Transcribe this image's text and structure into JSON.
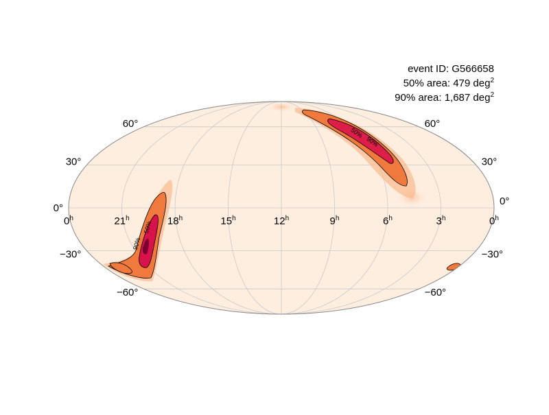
{
  "annotation": {
    "event_prefix": "event ID: ",
    "event_id": "G566658",
    "area50_prefix": "50% area: ",
    "area50_value": "479",
    "area90_prefix": "90% area: ",
    "area90_value": "1,687",
    "unit": "deg",
    "unit_exp": "2"
  },
  "projection": "mollweide",
  "ra_labels": [
    {
      "ra": 24,
      "text": "0",
      "sup": "h"
    },
    {
      "ra": 21,
      "text": "21",
      "sup": "h"
    },
    {
      "ra": 18,
      "text": "18",
      "sup": "h"
    },
    {
      "ra": 15,
      "text": "15",
      "sup": "h"
    },
    {
      "ra": 12,
      "text": "12",
      "sup": "h"
    },
    {
      "ra": 9,
      "text": "9",
      "sup": "h"
    },
    {
      "ra": 6,
      "text": "6",
      "sup": "h"
    },
    {
      "ra": 3,
      "text": "3",
      "sup": "h"
    },
    {
      "ra": 0,
      "text": "0",
      "sup": "h"
    }
  ],
  "dec_labels": [
    {
      "dec": 60,
      "text": "60°"
    },
    {
      "dec": 30,
      "text": "30°"
    },
    {
      "dec": 0,
      "text": "0°"
    },
    {
      "dec": -30,
      "text": "−30°"
    },
    {
      "dec": -60,
      "text": "−60°"
    }
  ],
  "meridians_ra": [
    24,
    21,
    18,
    15,
    12,
    9,
    6,
    3,
    0
  ],
  "parallels_dec": [
    -60,
    -30,
    0,
    30,
    60
  ],
  "contour_labels": {
    "c50": "50%",
    "c90": "90%"
  },
  "colors": {
    "background_map": "#fdeee0",
    "halo": "#f7a36a",
    "contour90_fill": "#ef5a2a",
    "contour50_fill": "#d8124a",
    "peak": "#7a0030",
    "outline": "#888888",
    "grid": "#c8c8c8"
  }
}
